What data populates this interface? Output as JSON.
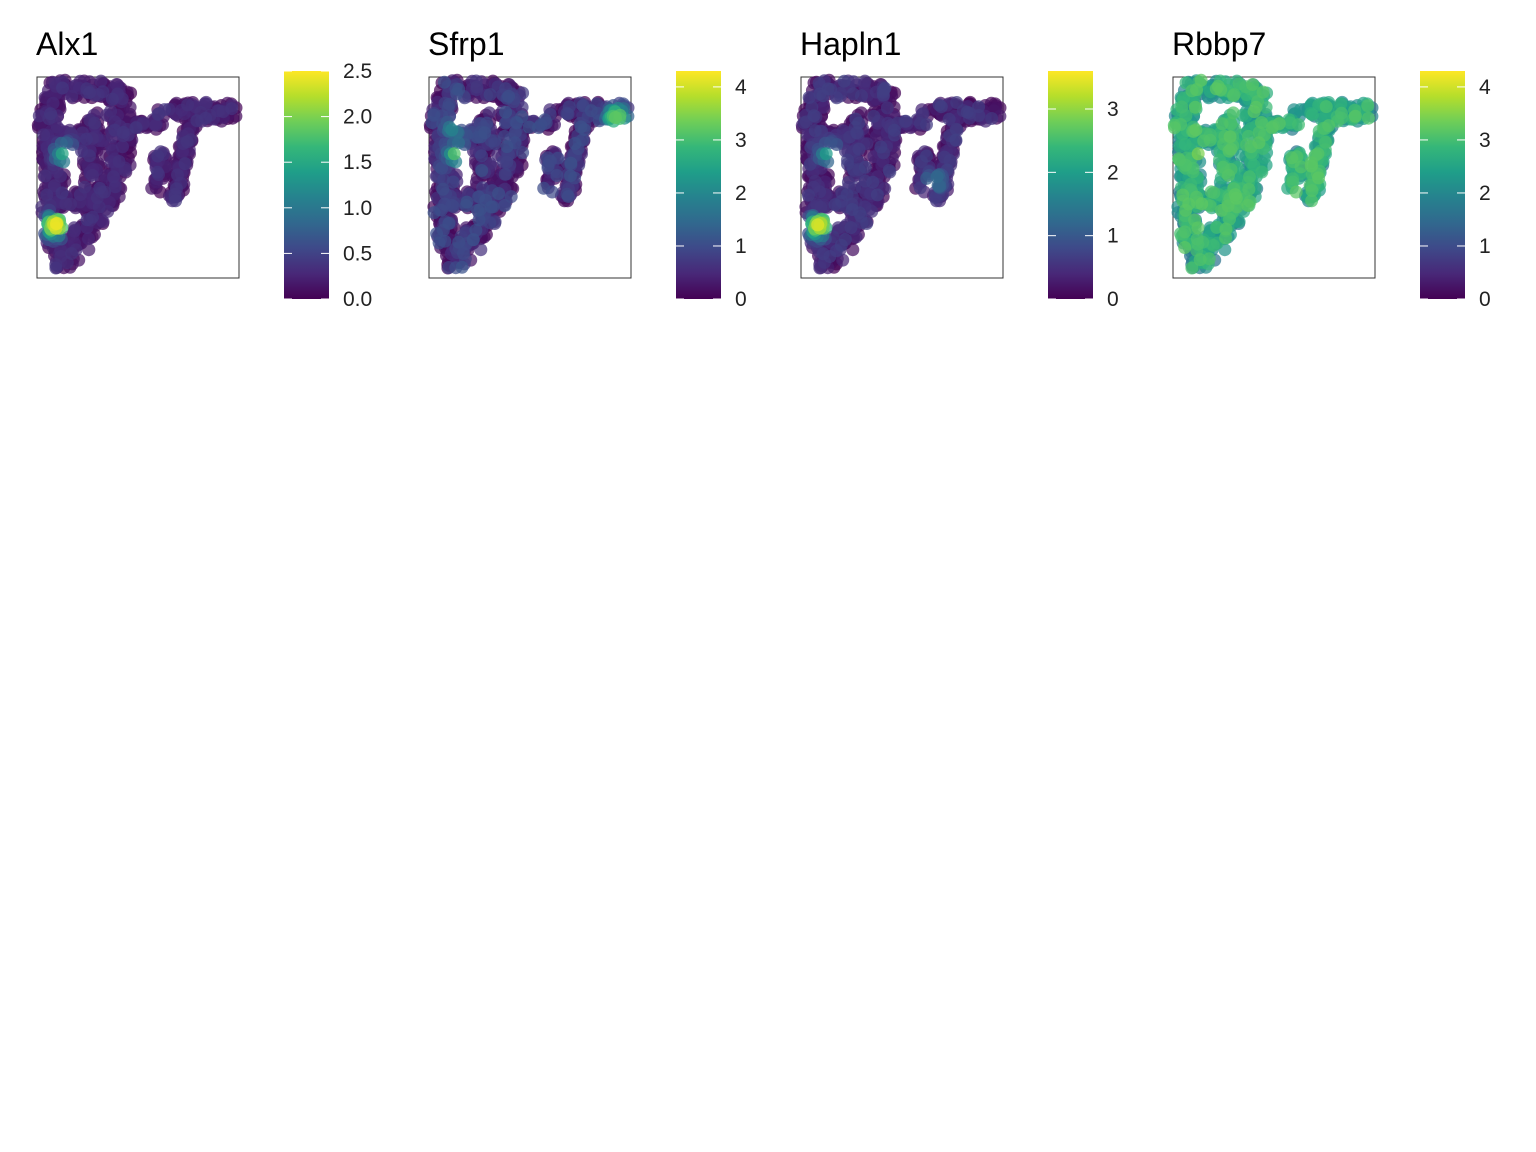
{
  "palette": "viridis",
  "chart_data": [
    {
      "type": "scatter",
      "title": "Alx1",
      "xlabel": "",
      "ylabel": "",
      "grid": false,
      "legend_position": "right",
      "colorbar": {
        "min": 0,
        "max": 2.5,
        "ticks": [
          0.0,
          0.5,
          1.0,
          1.5,
          2.0,
          2.5
        ],
        "tick_labels": [
          "0.0",
          "0.5",
          "1.0",
          "1.5",
          "2.0",
          "2.5"
        ]
      },
      "expression_profile": {
        "base": 0.05,
        "spread": 0.35,
        "hotspots": [
          {
            "region": "left-middle",
            "value": 1.6
          },
          {
            "region": "left-lower",
            "value": 2.4
          }
        ]
      }
    },
    {
      "type": "scatter",
      "title": "Sfrp1",
      "xlabel": "",
      "ylabel": "",
      "grid": false,
      "legend_position": "right",
      "colorbar": {
        "min": 0,
        "max": 4.3,
        "ticks": [
          0,
          1,
          2,
          3,
          4
        ],
        "tick_labels": [
          "0",
          "1",
          "2",
          "3",
          "4"
        ]
      },
      "expression_profile": {
        "base": 0.2,
        "spread": 0.9,
        "hotspots": [
          {
            "region": "left-middle",
            "value": 3.2
          },
          {
            "region": "top-right",
            "value": 3.4
          },
          {
            "region": "left-upper",
            "value": 2.0
          }
        ]
      }
    },
    {
      "type": "scatter",
      "title": "Hapln1",
      "xlabel": "",
      "ylabel": "",
      "grid": false,
      "legend_position": "right",
      "colorbar": {
        "min": 0,
        "max": 3.6,
        "ticks": [
          0,
          1,
          2,
          3
        ],
        "tick_labels": [
          "0",
          "1",
          "2",
          "3"
        ]
      },
      "expression_profile": {
        "base": 0.1,
        "spread": 0.6,
        "hotspots": [
          {
            "region": "left-middle",
            "value": 2.2
          },
          {
            "region": "left-lower",
            "value": 3.4
          },
          {
            "region": "right-arm",
            "value": 1.5
          }
        ]
      }
    },
    {
      "type": "scatter",
      "title": "Rbbp7",
      "xlabel": "",
      "ylabel": "",
      "grid": false,
      "legend_position": "right",
      "colorbar": {
        "min": 0,
        "max": 4.3,
        "ticks": [
          0,
          1,
          2,
          3,
          4
        ],
        "tick_labels": [
          "0",
          "1",
          "2",
          "3",
          "4"
        ]
      },
      "expression_profile": {
        "base": 2.4,
        "spread": 0.8,
        "hotspots": [
          {
            "region": "left-middle",
            "value": 3.6
          },
          {
            "region": "left-upper",
            "value": 3.3
          }
        ]
      }
    }
  ]
}
